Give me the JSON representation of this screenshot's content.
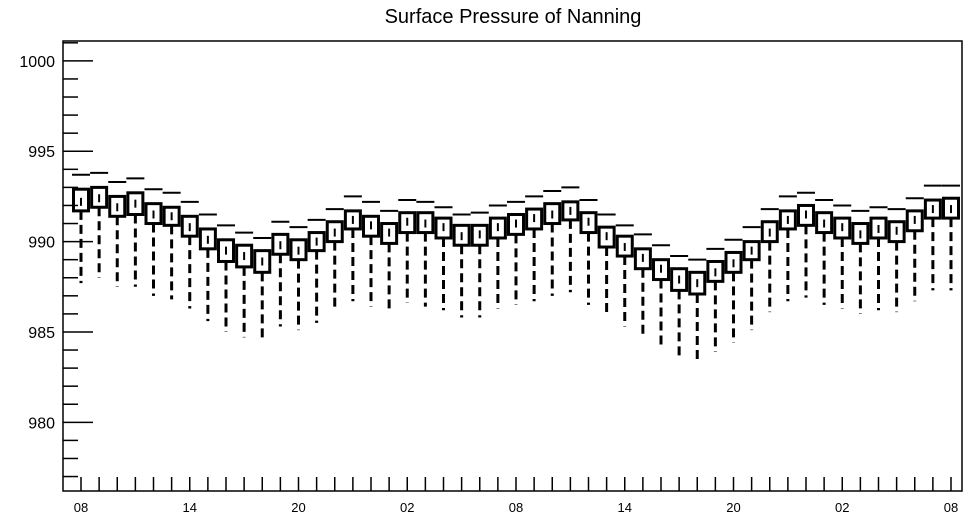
{
  "chart_data": {
    "type": "box",
    "title": "Surface Pressure of Nanning",
    "xlabel": "",
    "ylabel": "",
    "ylim": [
      976.2,
      1001.1
    ],
    "xlim": [
      0,
      49
    ],
    "yticks": [
      980,
      985,
      990,
      995,
      1000
    ],
    "xtick_labels": [
      {
        "x": 0,
        "label": "08"
      },
      {
        "x": 6,
        "label": "14"
      },
      {
        "x": 12,
        "label": "20"
      },
      {
        "x": 18,
        "label": "02"
      },
      {
        "x": 24,
        "label": "08"
      },
      {
        "x": 30,
        "label": "14"
      },
      {
        "x": 36,
        "label": "20"
      },
      {
        "x": 42,
        "label": "02"
      },
      {
        "x": 48,
        "label": "08"
      }
    ],
    "grid": false,
    "boxes": [
      {
        "x": 0,
        "q1": 991.7,
        "median": 992.2,
        "q3": 992.9,
        "whisker_low": 987.7,
        "whisker_high": 993.7
      },
      {
        "x": 1,
        "q1": 991.9,
        "median": 992.4,
        "q3": 993.0,
        "whisker_low": 988.0,
        "whisker_high": 993.8
      },
      {
        "x": 2,
        "q1": 991.4,
        "median": 991.9,
        "q3": 992.5,
        "whisker_low": 987.5,
        "whisker_high": 993.3
      },
      {
        "x": 3,
        "q1": 991.5,
        "median": 992.1,
        "q3": 992.7,
        "whisker_low": 987.5,
        "whisker_high": 993.5
      },
      {
        "x": 4,
        "q1": 991.0,
        "median": 991.5,
        "q3": 992.1,
        "whisker_low": 987.0,
        "whisker_high": 992.9
      },
      {
        "x": 5,
        "q1": 990.9,
        "median": 991.4,
        "q3": 991.9,
        "whisker_low": 986.8,
        "whisker_high": 992.7
      },
      {
        "x": 6,
        "q1": 990.3,
        "median": 990.8,
        "q3": 991.4,
        "whisker_low": 986.3,
        "whisker_high": 992.2
      },
      {
        "x": 7,
        "q1": 989.6,
        "median": 990.1,
        "q3": 990.7,
        "whisker_low": 985.6,
        "whisker_high": 991.5
      },
      {
        "x": 8,
        "q1": 988.9,
        "median": 989.5,
        "q3": 990.1,
        "whisker_low": 985.0,
        "whisker_high": 990.9
      },
      {
        "x": 9,
        "q1": 988.6,
        "median": 989.2,
        "q3": 989.8,
        "whisker_low": 984.7,
        "whisker_high": 990.5
      },
      {
        "x": 10,
        "q1": 988.3,
        "median": 988.9,
        "q3": 989.5,
        "whisker_low": 984.5,
        "whisker_high": 990.2
      },
      {
        "x": 11,
        "q1": 989.3,
        "median": 989.8,
        "q3": 990.4,
        "whisker_low": 985.3,
        "whisker_high": 991.1
      },
      {
        "x": 12,
        "q1": 989.0,
        "median": 989.5,
        "q3": 990.1,
        "whisker_low": 985.1,
        "whisker_high": 990.8
      },
      {
        "x": 13,
        "q1": 989.5,
        "median": 990.0,
        "q3": 990.5,
        "whisker_low": 985.5,
        "whisker_high": 991.2
      },
      {
        "x": 14,
        "q1": 990.0,
        "median": 990.5,
        "q3": 991.1,
        "whisker_low": 986.2,
        "whisker_high": 991.8
      },
      {
        "x": 15,
        "q1": 990.7,
        "median": 991.2,
        "q3": 991.7,
        "whisker_low": 986.7,
        "whisker_high": 992.5
      },
      {
        "x": 16,
        "q1": 990.3,
        "median": 990.9,
        "q3": 991.4,
        "whisker_low": 986.4,
        "whisker_high": 992.2
      },
      {
        "x": 17,
        "q1": 989.9,
        "median": 990.5,
        "q3": 991.0,
        "whisker_low": 986.1,
        "whisker_high": 991.7
      },
      {
        "x": 18,
        "q1": 990.5,
        "median": 991.1,
        "q3": 991.6,
        "whisker_low": 986.6,
        "whisker_high": 992.3
      },
      {
        "x": 19,
        "q1": 990.5,
        "median": 991.0,
        "q3": 991.6,
        "whisker_low": 986.4,
        "whisker_high": 992.2
      },
      {
        "x": 20,
        "q1": 990.2,
        "median": 990.8,
        "q3": 991.3,
        "whisker_low": 986.2,
        "whisker_high": 991.9
      },
      {
        "x": 21,
        "q1": 989.8,
        "median": 990.3,
        "q3": 990.9,
        "whisker_low": 985.8,
        "whisker_high": 991.5
      },
      {
        "x": 22,
        "q1": 989.8,
        "median": 990.4,
        "q3": 990.9,
        "whisker_low": 985.8,
        "whisker_high": 991.6
      },
      {
        "x": 23,
        "q1": 990.2,
        "median": 990.8,
        "q3": 991.3,
        "whisker_low": 986.3,
        "whisker_high": 992.0
      },
      {
        "x": 24,
        "q1": 990.4,
        "median": 991.0,
        "q3": 991.5,
        "whisker_low": 986.5,
        "whisker_high": 992.2
      },
      {
        "x": 25,
        "q1": 990.7,
        "median": 991.3,
        "q3": 991.8,
        "whisker_low": 986.7,
        "whisker_high": 992.5
      },
      {
        "x": 26,
        "q1": 991.0,
        "median": 991.5,
        "q3": 992.1,
        "whisker_low": 987.0,
        "whisker_high": 992.8
      },
      {
        "x": 27,
        "q1": 991.2,
        "median": 991.7,
        "q3": 992.2,
        "whisker_low": 987.2,
        "whisker_high": 993.0
      },
      {
        "x": 28,
        "q1": 990.5,
        "median": 991.1,
        "q3": 991.6,
        "whisker_low": 986.5,
        "whisker_high": 992.3
      },
      {
        "x": 29,
        "q1": 989.7,
        "median": 990.3,
        "q3": 990.8,
        "whisker_low": 985.9,
        "whisker_high": 991.5
      },
      {
        "x": 30,
        "q1": 989.2,
        "median": 989.7,
        "q3": 990.3,
        "whisker_low": 985.3,
        "whisker_high": 990.9
      },
      {
        "x": 31,
        "q1": 988.5,
        "median": 989.1,
        "q3": 989.6,
        "whisker_low": 984.7,
        "whisker_high": 990.4
      },
      {
        "x": 32,
        "q1": 987.9,
        "median": 988.5,
        "q3": 989.0,
        "whisker_low": 984.1,
        "whisker_high": 989.8
      },
      {
        "x": 33,
        "q1": 987.3,
        "median": 987.9,
        "q3": 988.5,
        "whisker_low": 983.5,
        "whisker_high": 989.2
      },
      {
        "x": 34,
        "q1": 987.1,
        "median": 987.7,
        "q3": 988.3,
        "whisker_low": 983.3,
        "whisker_high": 989.0
      },
      {
        "x": 35,
        "q1": 987.8,
        "median": 988.3,
        "q3": 988.9,
        "whisker_low": 983.9,
        "whisker_high": 989.6
      },
      {
        "x": 36,
        "q1": 988.3,
        "median": 988.8,
        "q3": 989.4,
        "whisker_low": 984.4,
        "whisker_high": 990.1
      },
      {
        "x": 37,
        "q1": 989.0,
        "median": 989.5,
        "q3": 990.0,
        "whisker_low": 985.1,
        "whisker_high": 990.8
      },
      {
        "x": 38,
        "q1": 990.0,
        "median": 990.5,
        "q3": 991.1,
        "whisker_low": 986.1,
        "whisker_high": 991.8
      },
      {
        "x": 39,
        "q1": 990.7,
        "median": 991.2,
        "q3": 991.7,
        "whisker_low": 986.7,
        "whisker_high": 992.5
      },
      {
        "x": 40,
        "q1": 990.9,
        "median": 991.5,
        "q3": 992.0,
        "whisker_low": 986.9,
        "whisker_high": 992.7
      },
      {
        "x": 41,
        "q1": 990.5,
        "median": 991.0,
        "q3": 991.6,
        "whisker_low": 986.5,
        "whisker_high": 992.3
      },
      {
        "x": 42,
        "q1": 990.2,
        "median": 990.8,
        "q3": 991.3,
        "whisker_low": 986.3,
        "whisker_high": 992.0
      },
      {
        "x": 43,
        "q1": 989.9,
        "median": 990.4,
        "q3": 991.0,
        "whisker_low": 986.0,
        "whisker_high": 991.7
      },
      {
        "x": 44,
        "q1": 990.2,
        "median": 990.7,
        "q3": 991.3,
        "whisker_low": 986.2,
        "whisker_high": 991.9
      },
      {
        "x": 45,
        "q1": 990.0,
        "median": 990.6,
        "q3": 991.1,
        "whisker_low": 986.1,
        "whisker_high": 991.8
      },
      {
        "x": 46,
        "q1": 990.6,
        "median": 991.2,
        "q3": 991.7,
        "whisker_low": 986.7,
        "whisker_high": 992.4
      },
      {
        "x": 47,
        "q1": 991.3,
        "median": 991.8,
        "q3": 992.3,
        "whisker_low": 987.3,
        "whisker_high": 993.1
      },
      {
        "x": 48,
        "q1": 991.3,
        "median": 991.8,
        "q3": 992.4,
        "whisker_low": 987.3,
        "whisker_high": 993.1
      }
    ]
  }
}
